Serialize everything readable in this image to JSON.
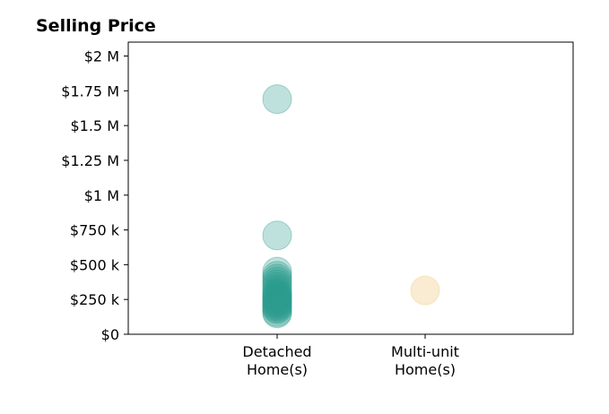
{
  "chart_data": {
    "type": "scatter",
    "title": "Selling Price",
    "xlabel": "",
    "ylabel": "",
    "categories": [
      "Detached\nHome(s)",
      "Multi-unit\nHome(s)"
    ],
    "ylim": [
      0,
      2100000
    ],
    "yticks": [
      0,
      250000,
      500000,
      750000,
      1000000,
      1250000,
      1500000,
      1750000,
      2000000
    ],
    "ytick_labels": [
      "$0",
      "$250 k",
      "$500 k",
      "$750 k",
      "$1 M",
      "$1.25 M",
      "$1.5 M",
      "$1.75 M",
      "$2 M"
    ],
    "grid": false,
    "legend": "none",
    "series": [
      {
        "category": "Detached\nHome(s)",
        "color": "#2a9d8f",
        "opacity": 0.3,
        "values": [
          1690000,
          710000,
          450000,
          420000,
          400000,
          380000,
          360000,
          340000,
          320000,
          300000,
          290000,
          280000,
          270000,
          260000,
          250000,
          240000,
          230000,
          220000,
          210000,
          200000,
          190000,
          180000,
          160000,
          150000
        ]
      },
      {
        "category": "Multi-unit\nHome(s)",
        "color": "#f4d9a6",
        "opacity": 0.5,
        "values": [
          315000
        ]
      }
    ]
  }
}
